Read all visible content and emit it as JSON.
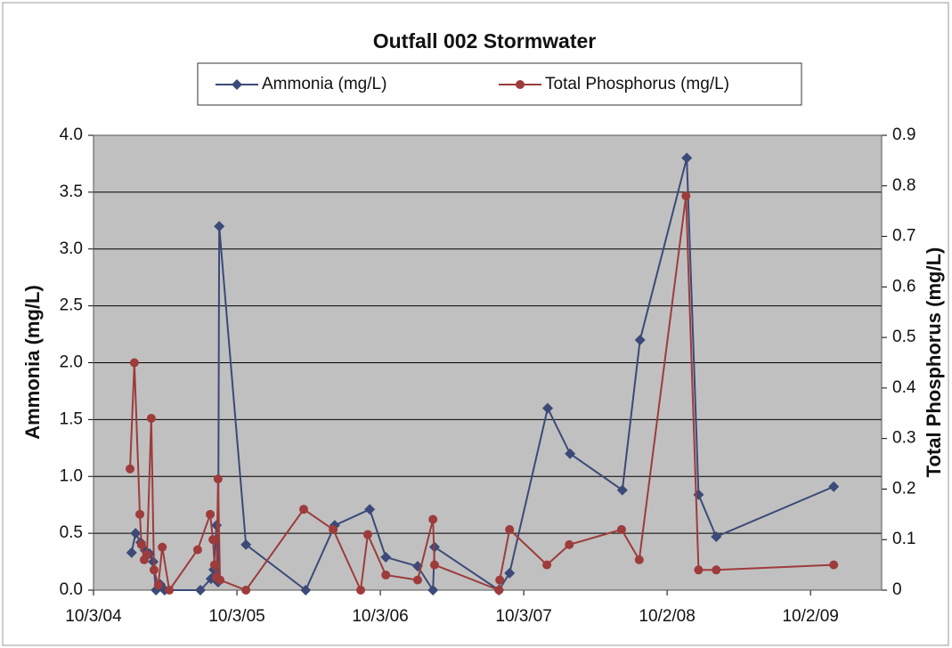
{
  "chart_data": {
    "type": "line",
    "title": "Outfall 002 Stormwater",
    "y_label": "Ammonia (mg/L)",
    "y2_label": "Total Phosphorus (mg/L)",
    "xlim": [
      "2004-10-03",
      "2010-04-01"
    ],
    "xticks": [
      {
        "value": "2004-10-03",
        "label": "10/3/04"
      },
      {
        "value": "2005-10-03",
        "label": "10/3/05"
      },
      {
        "value": "2006-10-03",
        "label": "10/3/06"
      },
      {
        "value": "2007-10-03",
        "label": "10/3/07"
      },
      {
        "value": "2008-10-02",
        "label": "10/2/08"
      },
      {
        "value": "2009-10-02",
        "label": "10/2/09"
      }
    ],
    "ylim": [
      0,
      4
    ],
    "yticks": [
      {
        "value": 0,
        "label": "0.0"
      },
      0.5,
      {
        "value": 1,
        "label": "1.0"
      },
      1.5,
      {
        "value": 2,
        "label": "2.0"
      },
      2.5,
      {
        "value": 3,
        "label": "3.0"
      },
      3.5,
      {
        "value": 4,
        "label": "4.0"
      }
    ],
    "y2lim": [
      0,
      0.9
    ],
    "y2ticks": [
      0,
      0.1,
      0.2,
      0.3,
      0.4,
      0.5,
      0.6,
      0.7,
      0.8,
      0.9
    ],
    "grid": true,
    "legend": "top",
    "series": [
      {
        "name": "Ammonia (mg/L)",
        "color": "#3b4a78",
        "marker": "diamond",
        "x": [
          "2005-01-08",
          "2005-01-18",
          "2005-01-31",
          "2005-02-11",
          "2005-02-23",
          "2005-03-04",
          "2005-03-11",
          "2005-03-22",
          "2005-04-02",
          "2005-07-02",
          "2005-07-29",
          "2005-08-05",
          "2005-08-12",
          "2005-08-16",
          "2005-08-19",
          "2005-10-26",
          "2006-03-27",
          "2006-06-09",
          "2006-09-06",
          "2006-10-17",
          "2007-01-06",
          "2007-02-14",
          "2007-02-18",
          "2007-08-01",
          "2007-08-28",
          "2007-12-03",
          "2008-01-29",
          "2008-06-10",
          "2008-07-25",
          "2008-11-21",
          "2008-12-21",
          "2009-02-04",
          "2009-11-30"
        ],
        "values": [
          0.33,
          0.5,
          0.42,
          0.35,
          0.32,
          0.25,
          0,
          0.05,
          0,
          0,
          0.1,
          0.18,
          0.57,
          0.07,
          3.2,
          0.4,
          0,
          0.57,
          0.71,
          0.29,
          0.21,
          0,
          0.38,
          0,
          0.15,
          1.6,
          1.2,
          0.88,
          2.2,
          3.8,
          0.84,
          0.47,
          0.91
        ]
      },
      {
        "name": "Total Phosphorus (mg/L)",
        "color": "#9e3b3b",
        "marker": "circle",
        "axis": "y2",
        "x": [
          "2005-01-04",
          "2005-01-15",
          "2005-01-29",
          "2005-02-02",
          "2005-02-09",
          "2005-02-16",
          "2005-02-27",
          "2005-03-06",
          "2005-03-17",
          "2005-03-27",
          "2005-04-14",
          "2005-06-25",
          "2005-07-27",
          "2005-08-03",
          "2005-08-07",
          "2005-08-12",
          "2005-08-16",
          "2005-08-21",
          "2005-10-26",
          "2006-03-22",
          "2006-06-05",
          "2006-08-14",
          "2006-09-01",
          "2006-10-17",
          "2007-01-06",
          "2007-02-14",
          "2007-02-18",
          "2007-08-01",
          "2007-08-03",
          "2007-08-28",
          "2007-12-01",
          "2008-01-27",
          "2008-06-08",
          "2008-07-23",
          "2008-11-19",
          "2008-12-21",
          "2009-02-04",
          "2009-11-30"
        ],
        "values": [
          0.24,
          0.45,
          0.15,
          0.09,
          0.06,
          0.07,
          0.34,
          0.04,
          0.01,
          0.085,
          0,
          0.08,
          0.15,
          0.1,
          0.05,
          0.025,
          0.22,
          0.02,
          0,
          0.16,
          0.12,
          0,
          0.11,
          0.03,
          0.02,
          0.14,
          0.05,
          0,
          0.02,
          0.12,
          0.05,
          0.09,
          0.12,
          0.06,
          0.78,
          0.04,
          0.04,
          0.05
        ]
      }
    ]
  }
}
